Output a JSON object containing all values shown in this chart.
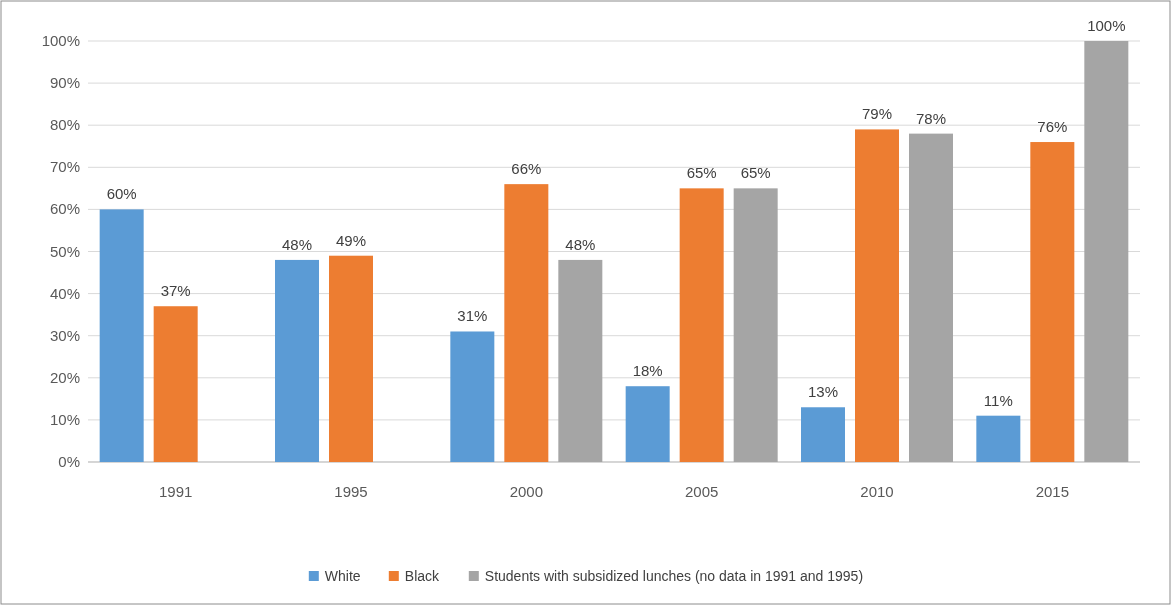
{
  "chart_data": {
    "type": "bar",
    "categories": [
      "1991",
      "1995",
      "2000",
      "2005",
      "2010",
      "2015"
    ],
    "series": [
      {
        "name": "White",
        "color": "#5b9bd5",
        "values": [
          60,
          48,
          31,
          18,
          13,
          11
        ],
        "value_labels": [
          "60%",
          "48%",
          "31%",
          "18%",
          "13%",
          "11%"
        ]
      },
      {
        "name": "Black",
        "color": "#ed7d31",
        "values": [
          37,
          49,
          66,
          65,
          79,
          76
        ],
        "value_labels": [
          "37%",
          "49%",
          "66%",
          "65%",
          "79%",
          "76%"
        ]
      },
      {
        "name": "Students with subsidized lunches (no data in 1991 and 1995)",
        "color": "#a5a5a5",
        "values": [
          null,
          null,
          48,
          65,
          78,
          100
        ],
        "value_labels": [
          null,
          null,
          "48%",
          "65%",
          "78%",
          "100%"
        ]
      }
    ],
    "ylim": [
      0,
      100
    ],
    "yticks": [
      {
        "value": 0,
        "label": "0%"
      },
      {
        "value": 10,
        "label": "10%"
      },
      {
        "value": 20,
        "label": "20%"
      },
      {
        "value": 30,
        "label": "30%"
      },
      {
        "value": 40,
        "label": "40%"
      },
      {
        "value": 50,
        "label": "50%"
      },
      {
        "value": 60,
        "label": "60%"
      },
      {
        "value": 70,
        "label": "70%"
      },
      {
        "value": 80,
        "label": "80%"
      },
      {
        "value": 90,
        "label": "90%"
      },
      {
        "value": 100,
        "label": "100%"
      }
    ],
    "grid": "y",
    "legend": "bottom"
  }
}
